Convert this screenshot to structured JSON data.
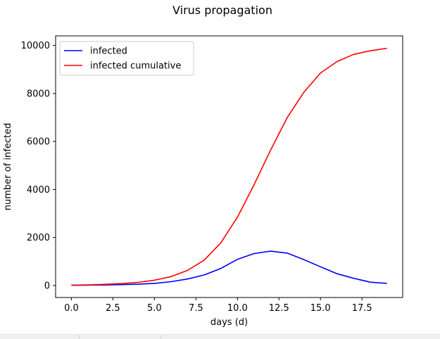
{
  "chart_data": {
    "type": "line",
    "title": "Virus propagation",
    "xlabel": "days (d)",
    "ylabel": "number of infected",
    "xlim": [
      -0.95,
      19.95
    ],
    "ylim": [
      -500,
      10400
    ],
    "xticks": [
      0.0,
      2.5,
      5.0,
      7.5,
      10.0,
      12.5,
      15.0,
      17.5
    ],
    "xtick_labels": [
      "0.0",
      "2.5",
      "5.0",
      "7.5",
      "10.0",
      "12.5",
      "15.0",
      "17.5"
    ],
    "yticks": [
      0,
      2000,
      4000,
      6000,
      8000,
      10000
    ],
    "ytick_labels": [
      "0",
      "2000",
      "4000",
      "6000",
      "8000",
      "10000"
    ],
    "grid": false,
    "legend_position": "top-left",
    "x": [
      0,
      1,
      2,
      3,
      4,
      5,
      6,
      7,
      8,
      9,
      10,
      11,
      12,
      13,
      14,
      15,
      16,
      17,
      18,
      19
    ],
    "series": [
      {
        "name": "infected",
        "color": "#0000ff",
        "values": [
          10,
          15,
          22,
          35,
          55,
          90,
          160,
          270,
          440,
          710,
          1090,
          1330,
          1430,
          1350,
          1080,
          780,
          490,
          300,
          140,
          90
        ]
      },
      {
        "name": "infected cumulative",
        "color": "#ff0000",
        "values": [
          10,
          25,
          47,
          80,
          130,
          220,
          370,
          630,
          1060,
          1780,
          2850,
          4200,
          5650,
          7000,
          8050,
          8850,
          9330,
          9630,
          9780,
          9880
        ]
      }
    ]
  }
}
